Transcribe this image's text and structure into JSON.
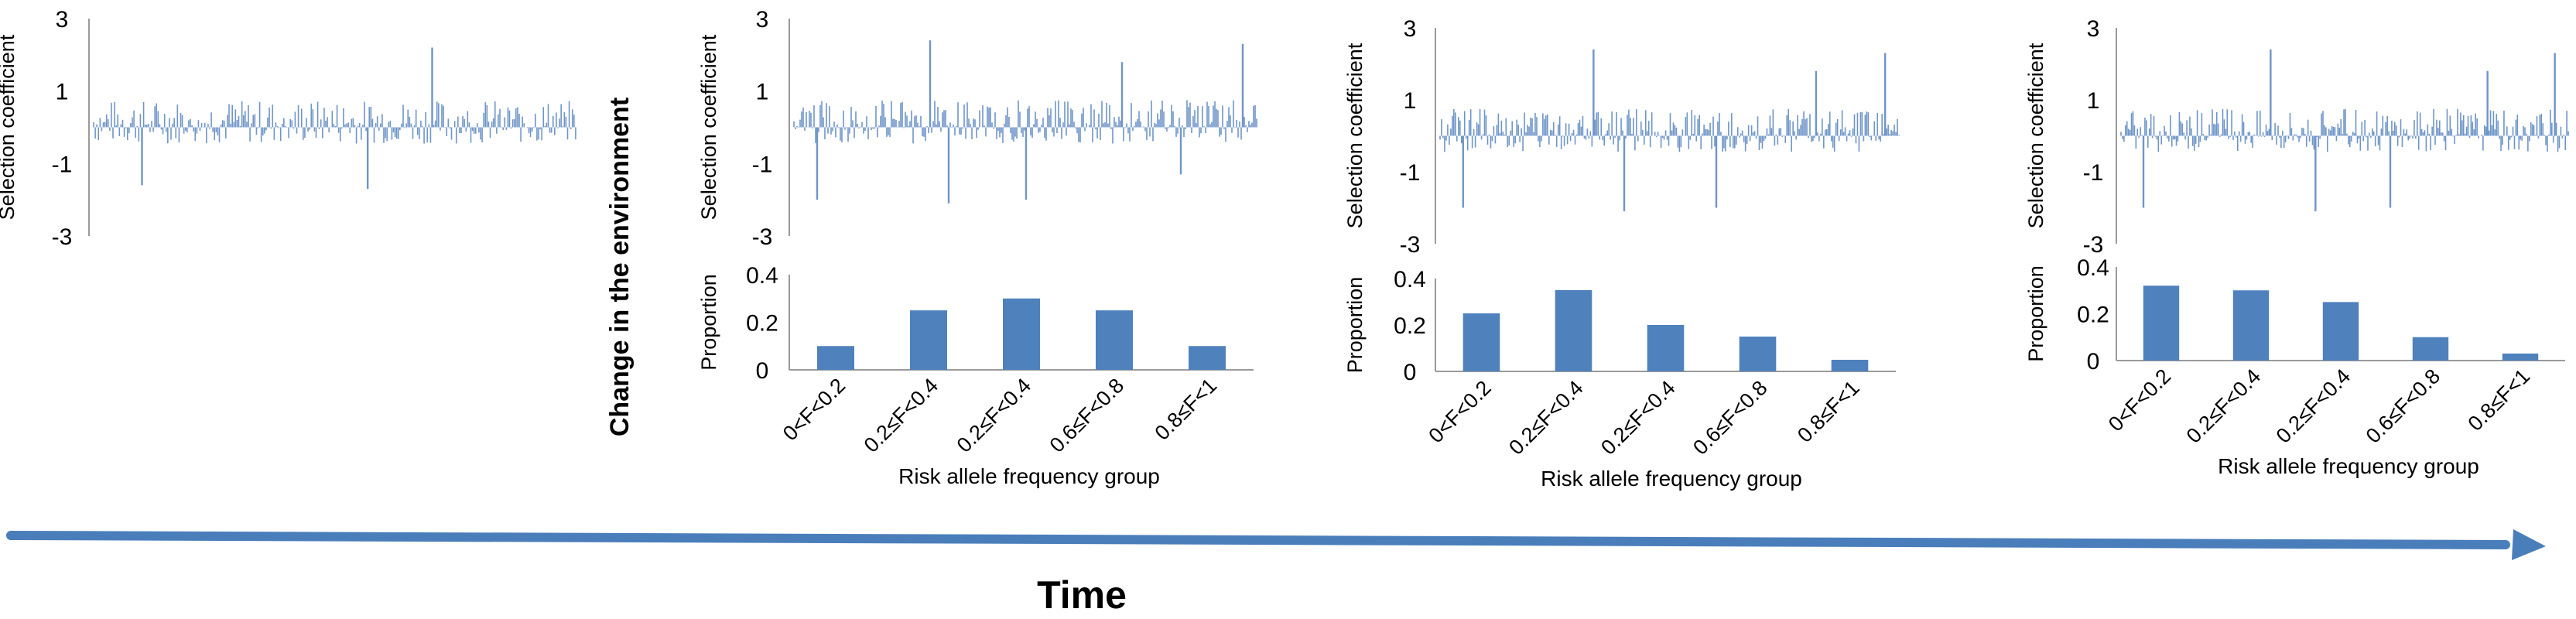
{
  "env_label": "Change in the environment",
  "time_label": "Time",
  "colors": {
    "bar": "#4f81bd",
    "spike": "#6f95c8",
    "arrow": "#4a7ebb",
    "axis": "#9a9a9a",
    "time_text": "#4f81bd"
  },
  "chart_data": [
    {
      "type": "bar",
      "name": "selection-coefficients-t0",
      "ylabel": "Selection coefficient",
      "yticks": [
        3,
        1,
        -1,
        -3
      ],
      "ylim": [
        -3,
        3
      ],
      "n_loci": 300,
      "spikes": [
        {
          "locus": 30,
          "value": -1.6
        },
        {
          "locus": 170,
          "value": -1.7
        },
        {
          "locus": 210,
          "value": 2.2
        }
      ]
    },
    {
      "type": "bar",
      "name": "selection-coefficients-t1",
      "ylabel": "Selection coefficient",
      "yticks": [
        3,
        1,
        -1,
        -3
      ],
      "ylim": [
        -3,
        3
      ],
      "n_loci": 300,
      "spikes": [
        {
          "locus": 15,
          "value": -2.0
        },
        {
          "locus": 88,
          "value": 2.4
        },
        {
          "locus": 100,
          "value": -2.1
        },
        {
          "locus": 150,
          "value": -2.0
        },
        {
          "locus": 212,
          "value": 1.8
        },
        {
          "locus": 250,
          "value": -1.3
        },
        {
          "locus": 290,
          "value": 2.3
        }
      ]
    },
    {
      "type": "bar",
      "name": "risk-allele-frequency-t1",
      "xlabel": "Risk allele frequency group",
      "ylabel": "Proportion",
      "categories": [
        "0<F<0.2",
        "0.2≤F<0.4",
        "0.2≤F<0.4",
        "0.6≤F<0.8",
        "0.8≤F<1"
      ],
      "values": [
        0.1,
        0.25,
        0.3,
        0.25,
        0.1
      ],
      "yticks": [
        "0",
        "0.2",
        "0.4"
      ],
      "ylim": [
        0,
        0.4
      ]
    },
    {
      "type": "bar",
      "name": "selection-coefficients-t2",
      "ylabel": "Selection coefficient",
      "yticks": [
        3,
        1,
        -1,
        -3
      ],
      "ylim": [
        -3,
        3
      ],
      "n_loci": 300,
      "spikes": [
        {
          "locus": 15,
          "value": -2.0
        },
        {
          "locus": 100,
          "value": 2.4
        },
        {
          "locus": 120,
          "value": -2.1
        },
        {
          "locus": 180,
          "value": -2.0
        },
        {
          "locus": 245,
          "value": 1.8
        },
        {
          "locus": 290,
          "value": 2.3
        }
      ]
    },
    {
      "type": "bar",
      "name": "risk-allele-frequency-t2",
      "xlabel": "Risk allele frequency group",
      "ylabel": "Proportion",
      "categories": [
        "0<F<0.2",
        "0.2≤F<0.4",
        "0.2≤F<0.4",
        "0.6≤F<0.8",
        "0.8≤F<1"
      ],
      "values": [
        0.25,
        0.35,
        0.2,
        0.15,
        0.05
      ],
      "yticks": [
        "0",
        "0.2",
        "0.4"
      ],
      "ylim": [
        0,
        0.4
      ]
    },
    {
      "type": "bar",
      "name": "selection-coefficients-t3",
      "ylabel": "Selection coefficient",
      "yticks": [
        3,
        1,
        -1,
        -3
      ],
      "ylim": [
        -3,
        3
      ],
      "n_loci": 300,
      "spikes": [
        {
          "locus": 15,
          "value": -2.0
        },
        {
          "locus": 100,
          "value": 2.4
        },
        {
          "locus": 130,
          "value": -2.1
        },
        {
          "locus": 180,
          "value": -2.0
        },
        {
          "locus": 245,
          "value": 1.8
        },
        {
          "locus": 290,
          "value": 2.3
        }
      ]
    },
    {
      "type": "bar",
      "name": "risk-allele-frequency-t3",
      "xlabel": "Risk allele frequency group",
      "ylabel": "Proportion",
      "categories": [
        "0<F<0.2",
        "0.2≤F<0.4",
        "0.2≤F<0.4",
        "0.6≤F<0.8",
        "0.8≤F<1"
      ],
      "values": [
        0.32,
        0.3,
        0.25,
        0.1,
        0.03
      ],
      "yticks": [
        "0",
        "0.2",
        "0.4"
      ],
      "ylim": [
        0,
        0.4
      ]
    }
  ]
}
